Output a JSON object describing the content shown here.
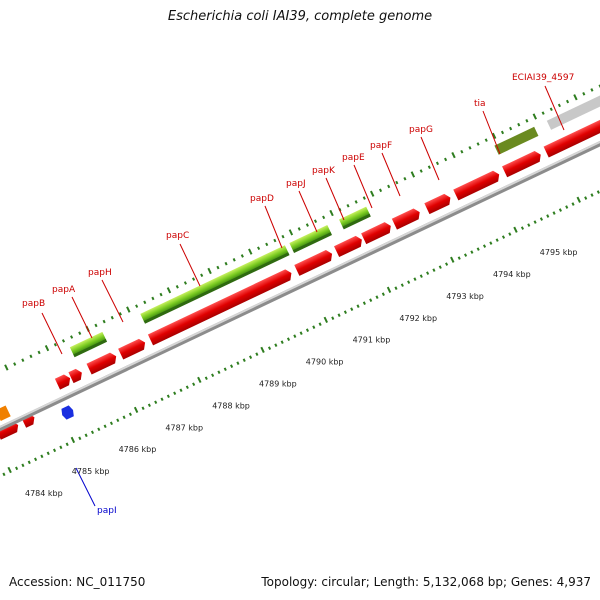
{
  "title": "Escherichia coli IAI39, complete genome",
  "footer": {
    "accession": "Accession: NC_011750",
    "summary": "Topology: circular; Length: 5,132,068 bp; Genes: 4,937"
  },
  "kbp_labels": [
    "4784 kbp",
    "4785 kbp",
    "4786 kbp",
    "4787 kbp",
    "4788 kbp",
    "4789 kbp",
    "4790 kbp",
    "4791 kbp",
    "4792 kbp",
    "4793 kbp",
    "4794 kbp",
    "4795 kbp"
  ],
  "gene_labels": [
    "papB",
    "papA",
    "papH",
    "papC",
    "papD",
    "papJ",
    "papK",
    "papE",
    "papF",
    "papG",
    "tia",
    "ECIAI39_4597",
    "papI"
  ],
  "colors": {
    "cds": "#e00000",
    "gene_green": "#78c828",
    "gene_dark_green": "#5a7a1e",
    "gray_feature": "#c8c8c8",
    "label_red": "#cc0000",
    "label_blue": "#0000cc",
    "tick_green": "#2e7d1f",
    "backbone": "#8c8c8c"
  }
}
